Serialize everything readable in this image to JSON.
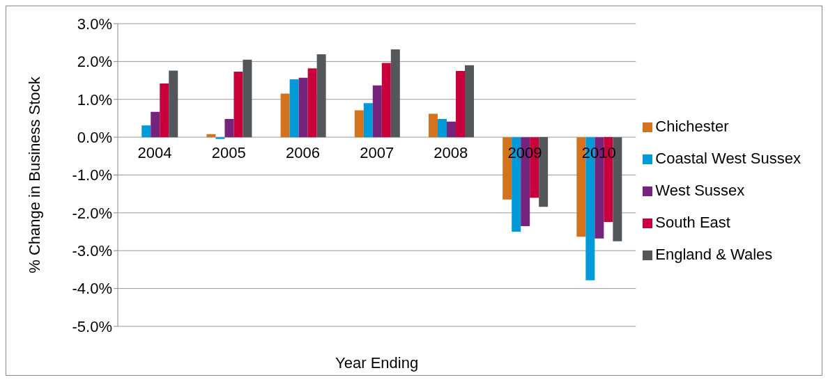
{
  "chart_data": {
    "type": "bar",
    "xlabel": "Year Ending",
    "ylabel": "% Change in Business Stock",
    "categories": [
      "2004",
      "2005",
      "2006",
      "2007",
      "2008",
      "2009",
      "2010"
    ],
    "series": [
      {
        "name": "Chichester",
        "color": "#d4731e",
        "values": [
          0,
          0.08,
          1.15,
          0.71,
          0.62,
          -1.65,
          -2.63
        ]
      },
      {
        "name": "Coastal West Sussex",
        "color": "#009ad8",
        "values": [
          0.31,
          -0.05,
          1.53,
          0.9,
          0.48,
          -2.5,
          -3.78
        ]
      },
      {
        "name": "West Sussex",
        "color": "#76237e",
        "values": [
          0.67,
          0.48,
          1.57,
          1.37,
          0.41,
          -2.35,
          -2.68
        ]
      },
      {
        "name": "South East",
        "color": "#c8003c",
        "values": [
          1.42,
          1.73,
          1.82,
          1.96,
          1.75,
          -1.6,
          -2.24
        ]
      },
      {
        "name": "England & Wales",
        "color": "#54575a",
        "values": [
          1.76,
          2.05,
          2.19,
          2.32,
          1.9,
          -1.84,
          -2.75
        ]
      }
    ],
    "ylim": [
      -5,
      3
    ],
    "yticks": [
      {
        "value": -5,
        "label": "-5.0%"
      },
      {
        "value": -4,
        "label": "-4.0%"
      },
      {
        "value": -3,
        "label": "-3.0%"
      },
      {
        "value": -2,
        "label": "-2.0%"
      },
      {
        "value": -1,
        "label": "-1.0%"
      },
      {
        "value": 0,
        "label": "0.0%"
      },
      {
        "value": 1,
        "label": "1.0%"
      },
      {
        "value": 2,
        "label": "2.0%"
      },
      {
        "value": 3,
        "label": "3.0%"
      }
    ],
    "grid": "y",
    "legend": "right"
  }
}
